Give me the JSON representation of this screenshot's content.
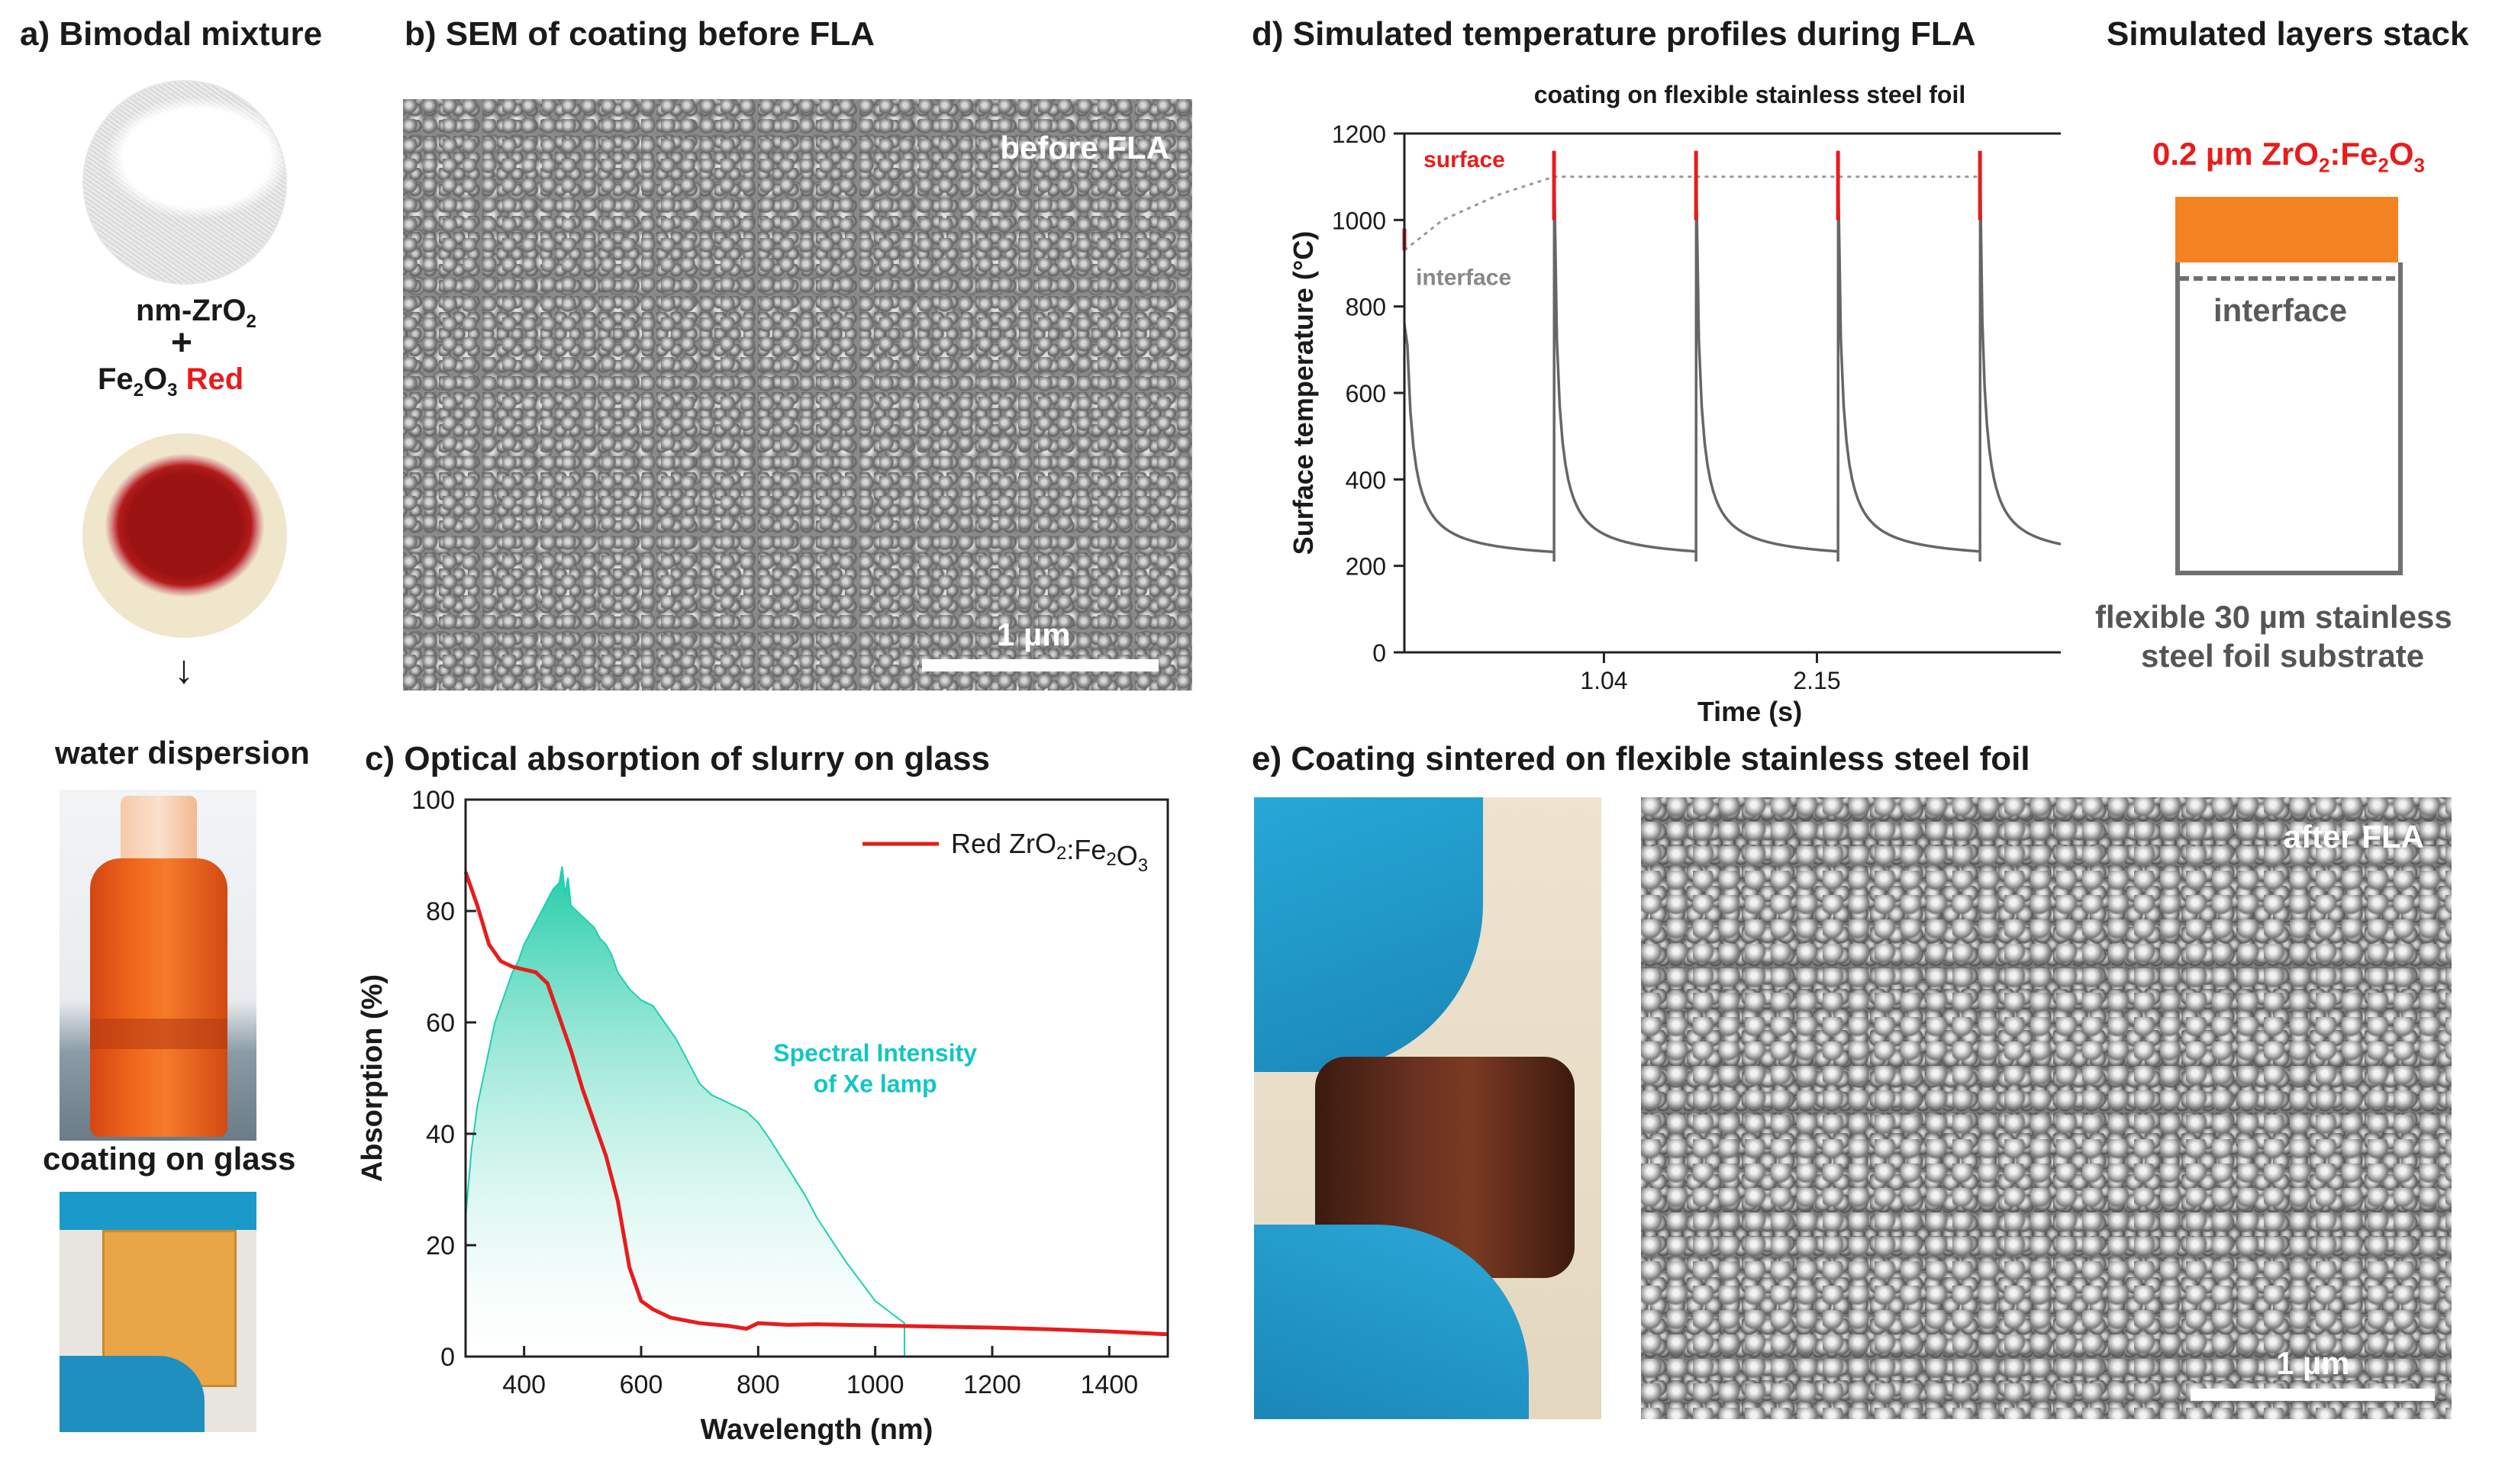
{
  "panel_a": {
    "title": "a) Bimodal mixture",
    "nm_zro2": "nm-ZrO",
    "nm_zro2_sub": "2",
    "plus": "+",
    "fe2o3_a": "Fe",
    "fe2o3_sub1": "2",
    "fe2o3_b": "O",
    "fe2o3_sub2": "3",
    "fe2o3_red": "Red",
    "arrow": "↓",
    "water_dispersion": "water dispersion",
    "coating_on_glass": "coating on glass"
  },
  "panel_b": {
    "title": "b) SEM of coating before FLA",
    "overlay": "before FLA",
    "scale": "1 µm"
  },
  "panel_c": {
    "title": "c)  Optical absorption of slurry on glass",
    "legend_prefix": "Red ZrO",
    "legend_sub1": "2",
    "legend_mid": ":Fe",
    "legend_sub2": "2",
    "legend_o": "O",
    "legend_sub3": "3",
    "annotation_line1": "Spectral Intensity",
    "annotation_line2": "of Xe lamp"
  },
  "panel_d": {
    "title": "d) Simulated temperature profiles during FLA",
    "subtitle": "coating on flexible stainless steel foil",
    "label_surface": "surface",
    "label_interface": "interface"
  },
  "stack": {
    "title": "Simulated layers stack",
    "layer_prefix": "0.2 µm ZrO",
    "layer_sub1": "2",
    "layer_mid": ":Fe",
    "layer_sub2": "2",
    "layer_o": "O",
    "layer_sub3": "3",
    "interface": "interface",
    "substrate_line1": "flexible 30 µm stainless",
    "substrate_line2": "steel foil substrate",
    "colors": {
      "coating": "#f58220",
      "frame": "#707070"
    }
  },
  "panel_e": {
    "title": "e) Coating sintered on flexible stainless steel foil",
    "overlay": "after FLA",
    "scale": "1 µm"
  },
  "chart_data": [
    {
      "id": "c",
      "type": "line",
      "xlabel": "Wavelength (nm)",
      "ylabel": "Absorption (%)",
      "xlim": [
        300,
        1500
      ],
      "ylim": [
        0,
        100
      ],
      "xticks": [
        400,
        600,
        800,
        1000,
        1200,
        1400
      ],
      "yticks": [
        0,
        20,
        40,
        60,
        80,
        100
      ],
      "series": [
        {
          "name": "Red ZrO2:Fe2O3",
          "color": "#e81c1c",
          "x": [
            300,
            320,
            340,
            360,
            380,
            400,
            420,
            440,
            460,
            480,
            500,
            520,
            540,
            560,
            580,
            600,
            620,
            650,
            700,
            750,
            780,
            800,
            850,
            900,
            1000,
            1100,
            1200,
            1300,
            1400,
            1500
          ],
          "y": [
            87,
            81,
            74,
            71,
            70,
            69.5,
            69,
            67,
            61,
            55,
            48,
            42,
            36,
            28,
            16,
            10,
            8.5,
            7,
            6,
            5.5,
            5,
            6,
            5.7,
            5.8,
            5.6,
            5.4,
            5.2,
            4.9,
            4.5,
            4
          ]
        },
        {
          "name": "Spectral Intensity of Xe lamp",
          "color": "#1fd0b0",
          "x": [
            300,
            310,
            320,
            330,
            340,
            350,
            360,
            370,
            380,
            390,
            400,
            410,
            420,
            430,
            440,
            450,
            460,
            465,
            470,
            475,
            480,
            490,
            500,
            510,
            520,
            530,
            540,
            550,
            560,
            580,
            600,
            620,
            640,
            660,
            680,
            700,
            720,
            740,
            760,
            780,
            800,
            820,
            850,
            880,
            900,
            950,
            1000,
            1050
          ],
          "y": [
            25,
            37,
            45,
            50,
            55,
            60,
            63,
            66,
            69,
            71,
            74,
            76,
            78,
            80,
            82,
            84,
            85,
            88,
            83,
            86,
            81,
            80,
            79,
            78,
            77,
            75,
            74,
            72,
            69,
            66,
            64,
            63,
            60,
            57,
            53,
            49,
            47,
            46,
            45,
            44,
            42,
            39,
            34,
            29,
            25,
            17,
            10,
            6
          ]
        }
      ]
    },
    {
      "id": "d",
      "type": "line",
      "xlabel": "Time (s)",
      "ylabel": "Surface temperature (°C)",
      "xlim": [
        0,
        3.6
      ],
      "ylim": [
        0,
        1200
      ],
      "xticks": [
        1.04,
        2.15
      ],
      "yticks": [
        0,
        200,
        400,
        600,
        800,
        1000,
        1200
      ],
      "pulses": [
        0,
        0.78,
        1.52,
        2.26,
        3.0
      ],
      "baseline": 210,
      "peak_surface": [
        980,
        1160,
        1160,
        1160,
        1160
      ],
      "interface_trend": {
        "x": [
          0,
          0.2,
          0.5,
          0.78,
          3.0
        ],
        "y": [
          930,
          1000,
          1060,
          1100,
          1100
        ]
      }
    }
  ]
}
